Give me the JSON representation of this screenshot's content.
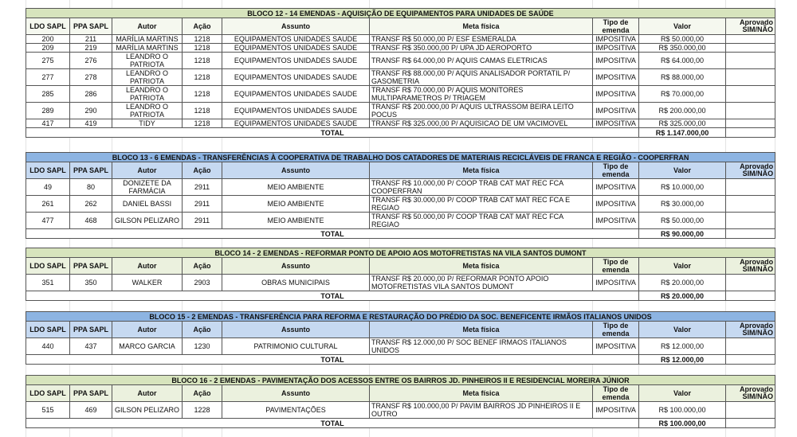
{
  "columns": [
    "LDO SAPL",
    "PPA SAPL",
    "Autor",
    "Ação",
    "Assunto",
    "Meta física",
    "Tipo de emenda",
    "Valor",
    "Aprovado SIM/NÃO"
  ],
  "total_label": "TOTAL",
  "colors": {
    "green_title": "#d7e4bd",
    "green_header": "#ebf1de",
    "blue_title": "#8db4e2",
    "blue_header": "#c6d9f1"
  },
  "blocks": [
    {
      "title": "BLOCO 12 - 14 EMENDAS - AQUISIÇÃO DE EQUIPAMENTOS PARA UNIDADES DE SAÚDE",
      "theme": "green",
      "total": "R$ 1.147.000,00",
      "rows": [
        [
          "200",
          "211",
          "MARÍLIA MARTINS",
          "1218",
          "EQUIPAMENTOS UNIDADES  SAUDE",
          "TRANSF R$ 50.000,00 P/ ESF ESMERALDA",
          "IMPOSITIVA",
          "R$ 50.000,00",
          ""
        ],
        [
          "209",
          "219",
          "MARÍLIA MARTINS",
          "1218",
          "EQUIPAMENTOS UNIDADES SAUDE",
          "TRANSF R$ 350.000,00 P/ UPA JD AEROPORTO",
          "IMPOSITIVA",
          "R$ 350.000,00",
          ""
        ],
        [
          "275",
          "276",
          "LEANDRO O PATRIOTA",
          "1218",
          "EQUIPAMENTOS UNIDADES SAUDE",
          "TRANSF R$ 64.000,00 P/ AQUIS CAMAS ELETRICAS",
          "IMPOSITIVA",
          "R$ 64.000,00",
          ""
        ],
        [
          "277",
          "278",
          "LEANDRO O PATRIOTA",
          "1218",
          "EQUIPAMENTOS UNIDADES SAUDE",
          "TRANSF R$ 88.000,00 P/ AQUIS ANALISADOR PORTATIL P/ GASOMETRIA",
          "IMPOSITIVA",
          "R$ 88.000,00",
          ""
        ],
        [
          "285",
          "286",
          "LEANDRO O PATRIOTA",
          "1218",
          "EQUIPAMENTOS UNIDADES SAUDE",
          "TRANSF R$ 70.000,00 P/ AQUIS MONITORES MULTIPARAMETROS P/ TRIAGEM",
          "IMPOSITIVA",
          "R$ 70.000,00",
          ""
        ],
        [
          "289",
          "290",
          "LEANDRO O PATRIOTA",
          "1218",
          "EQUIPAMENTOS UNIDADES SAUDE",
          "TRANSF R$ 200.000,00 P/ AQUIS ULTRASSOM BEIRA LEITO POCUS",
          "IMPOSITIVA",
          "R$ 200.000,00",
          ""
        ],
        [
          "417",
          "419",
          "TIDY",
          "1218",
          "EQUIPAMENTOS UNIDADES SAUDE",
          "TRANSF R$ 325.000,00 P/ AQUISICAO DE UM VACIMOVEL",
          "IMPOSITIVA",
          "R$ 325.000,00",
          ""
        ]
      ]
    },
    {
      "title": "BLOCO 13 - 6 EMENDAS - TRANSFERÊNCIAS À COOPERATIVA DE TRABALHO DOS CATADORES DE MATERIAIS RECICLÁVEIS DE FRANCA E REGIÃO - COOPERFRAN",
      "theme": "blue",
      "total": "R$ 90.000,00",
      "rows": [
        [
          "49",
          "80",
          "DONIZETE DA FARMÁCIA",
          "2911",
          "MEIO AMBIENTE",
          "TRANSF R$ 10.000,00 P/ COOP TRAB CAT MAT REC FCA COOPERFRAN",
          "IMPOSITIVA",
          "R$ 10.000,00",
          ""
        ],
        [
          "261",
          "262",
          "DANIEL BASSI",
          "2911",
          "MEIO AMBIENTE",
          "TRANSF R$ 30.000,00 P/ COOP TRAB CAT MAT REC FCA E REGIAO",
          "IMPOSITIVA",
          "R$ 30.000,00",
          ""
        ],
        [
          "477",
          "468",
          "GILSON PELIZARO",
          "2911",
          "MEIO AMBIENTE",
          "TRANSF R$ 50.000,00 P/ COOP TRAB CAT MAT REC FCA REGIAO",
          "IMPOSITIVA",
          "R$ 50.000,00",
          ""
        ]
      ]
    },
    {
      "title": "BLOCO 14 - 2 EMENDAS - REFORMAR PONTO DE APOIO AOS MOTOFRETISTAS NA VILA SANTOS DUMONT",
      "theme": "green",
      "total": "R$ 20.000,00",
      "rows": [
        [
          "351",
          "350",
          "WALKER",
          "2903",
          "OBRAS MUNICIPAIS",
          "TRANSF R$ 20.000,00 P/ REFORMAR PONTO APOIO MOTOFRETISTAS VILA SANTOS DUMONT",
          "IMPOSITIVA",
          "R$ 20.000,00",
          ""
        ]
      ]
    },
    {
      "title": "BLOCO 15 - 2 EMENDAS - TRANSFERÊNCIA PARA REFORMA E RESTAURAÇÃO DO PRÉDIO DA SOC. BENEFICENTE IRMÃOS ITALIANOS UNIDOS",
      "theme": "blue",
      "total": "R$ 12.000,00",
      "rows": [
        [
          "440",
          "437",
          "MARCO GARCIA",
          "1230",
          "PATRIMONIO CULTURAL",
          "TRANSF R$ 12.000,00 P/ SOC BENEF IRMAOS ITALIANOS UNIDOS",
          "IMPOSITIVA",
          "R$ 12.000,00",
          ""
        ]
      ]
    },
    {
      "title": "BLOCO 16 - 2 EMENDAS - PAVIMENTAÇÃO DOS ACESSOS ENTRE OS BAIRROS JD. PINHEIROS II E RESIDENCIAL MOREIRA JÚNIOR",
      "theme": "green",
      "total": "R$ 100.000,00",
      "rows": [
        [
          "515",
          "469",
          "GILSON PELIZARO",
          "1228",
          "PAVIMENTAÇÕES",
          "TRANSF R$ 100.000,00 P/ PAVIM BAIRROS JD PINHEIROS II E OUTRO",
          "IMPOSITIVA",
          "R$ 100.000,00",
          ""
        ]
      ]
    }
  ]
}
